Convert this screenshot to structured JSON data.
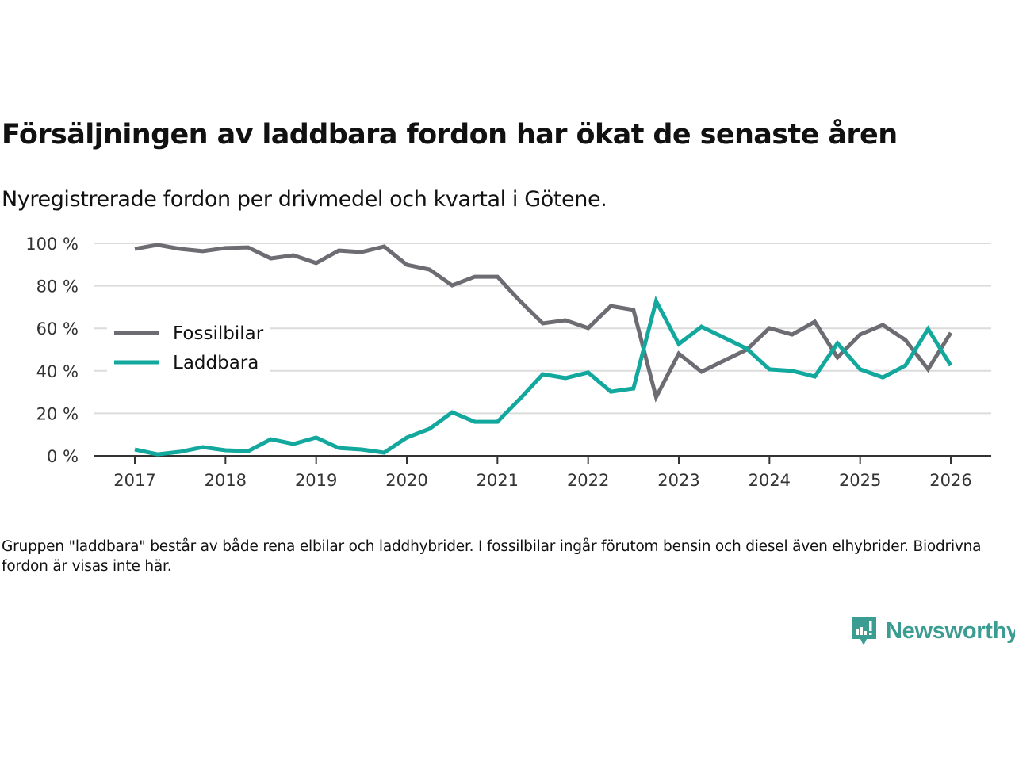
{
  "header": {
    "title": "Försäljningen av laddbara fordon har ökat de senaste åren",
    "subtitle": "Nyregistrerade fordon per drivmedel och kvartal i Götene."
  },
  "footnote": "Gruppen \"laddbara\" består av både rena elbilar och laddhybrider. I fossilbilar ingår förutom bensin och diesel även elhybrider. Biodrivna fordon är visas inte här.",
  "brand": {
    "name": "Newsworthy",
    "icon": "newsworthy-logo-icon",
    "color": "#3b9c91"
  },
  "chart_data": {
    "type": "line",
    "title": "Försäljningen av laddbara fordon har ökat de senaste åren",
    "subtitle": "Nyregistrerade fordon per drivmedel och kvartal i Götene.",
    "xlabel": "",
    "ylabel": "",
    "x_unit": "quarter",
    "x_start": 2017.0,
    "x_step": 0.25,
    "xlim": [
      2016.55,
      2026.45
    ],
    "ylim": [
      0,
      100
    ],
    "x_ticks": [
      2017,
      2018,
      2019,
      2020,
      2021,
      2022,
      2023,
      2024,
      2025,
      2026
    ],
    "x_tick_labels": [
      "2017",
      "2018",
      "2019",
      "2020",
      "2021",
      "2022",
      "2023",
      "2024",
      "2025",
      "2026"
    ],
    "y_ticks": [
      0,
      20,
      40,
      60,
      80,
      100
    ],
    "y_tick_labels": [
      "0 %",
      "20 %",
      "40 %",
      "60 %",
      "80 %",
      "100 %"
    ],
    "grid": true,
    "legend_position": "left-middle",
    "series": [
      {
        "name": "Fossilbilar",
        "color": "#6e6c73",
        "values": [
          97.4,
          99.3,
          97.4,
          96.3,
          97.8,
          98.1,
          92.9,
          94.4,
          90.7,
          96.6,
          95.9,
          98.5,
          89.9,
          87.7,
          80.2,
          84.3,
          84.3,
          72.8,
          62.3,
          63.8,
          60.1,
          70.5,
          68.7,
          27.6,
          48.1,
          39.6,
          44.8,
          50.0,
          60.1,
          57.1,
          63.1,
          46.3,
          57.1,
          61.6,
          54.5,
          40.7,
          57.9
        ]
      },
      {
        "name": "Laddbara",
        "color": "#13a89e",
        "values": [
          3.0,
          0.7,
          1.9,
          4.1,
          2.6,
          2.2,
          7.8,
          5.6,
          8.6,
          3.7,
          3.0,
          1.5,
          8.6,
          12.7,
          20.5,
          16.0,
          16.0,
          26.9,
          38.4,
          36.6,
          39.2,
          30.2,
          31.7,
          72.8,
          52.6,
          60.8,
          55.6,
          50.4,
          40.7,
          40.0,
          37.3,
          53.0,
          40.7,
          36.9,
          42.5,
          59.7,
          42.5
        ]
      }
    ]
  }
}
